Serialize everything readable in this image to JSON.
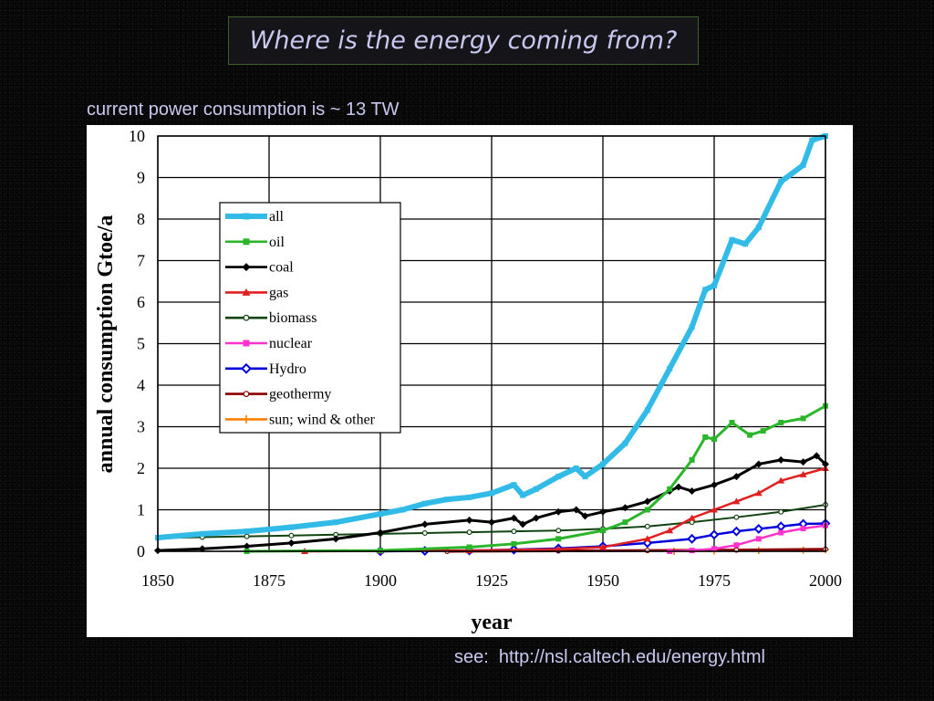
{
  "slide": {
    "title": "Where is the energy coming from?",
    "subtitle": "current power consumption is ~ 13 TW",
    "source": "see:  http://nsl.caltech.edu/energy.html"
  },
  "chart_data": {
    "type": "line",
    "title": "",
    "xlabel": "year",
    "ylabel": "annual consumption Gtoe/a",
    "xlim": [
      1850,
      2000
    ],
    "ylim": [
      0,
      10
    ],
    "xticks": [
      1850,
      1875,
      1900,
      1925,
      1950,
      1975,
      2000
    ],
    "yticks": [
      0,
      1,
      2,
      3,
      4,
      5,
      6,
      7,
      8,
      9,
      10
    ],
    "grid": true,
    "legend_position": "top-left",
    "series": [
      {
        "name": "all",
        "color": "#33bbe8",
        "marker": "square",
        "points": [
          [
            1850,
            0.33
          ],
          [
            1860,
            0.42
          ],
          [
            1870,
            0.48
          ],
          [
            1880,
            0.58
          ],
          [
            1890,
            0.7
          ],
          [
            1900,
            0.9
          ],
          [
            1905,
            1.0
          ],
          [
            1910,
            1.15
          ],
          [
            1915,
            1.25
          ],
          [
            1920,
            1.3
          ],
          [
            1925,
            1.4
          ],
          [
            1930,
            1.6
          ],
          [
            1932,
            1.35
          ],
          [
            1935,
            1.5
          ],
          [
            1940,
            1.8
          ],
          [
            1944,
            2.0
          ],
          [
            1946,
            1.8
          ],
          [
            1950,
            2.1
          ],
          [
            1955,
            2.6
          ],
          [
            1960,
            3.4
          ],
          [
            1965,
            4.4
          ],
          [
            1970,
            5.4
          ],
          [
            1973,
            6.3
          ],
          [
            1975,
            6.4
          ],
          [
            1979,
            7.5
          ],
          [
            1982,
            7.4
          ],
          [
            1985,
            7.8
          ],
          [
            1990,
            8.9
          ],
          [
            1995,
            9.3
          ],
          [
            1997,
            9.9
          ],
          [
            2000,
            10.0
          ]
        ]
      },
      {
        "name": "oil",
        "color": "#2ab52a",
        "marker": "square",
        "points": [
          [
            1870,
            0.0
          ],
          [
            1900,
            0.02
          ],
          [
            1920,
            0.1
          ],
          [
            1930,
            0.18
          ],
          [
            1940,
            0.3
          ],
          [
            1950,
            0.5
          ],
          [
            1955,
            0.7
          ],
          [
            1960,
            1.0
          ],
          [
            1965,
            1.5
          ],
          [
            1970,
            2.2
          ],
          [
            1973,
            2.75
          ],
          [
            1975,
            2.7
          ],
          [
            1979,
            3.1
          ],
          [
            1983,
            2.8
          ],
          [
            1986,
            2.9
          ],
          [
            1990,
            3.1
          ],
          [
            1995,
            3.2
          ],
          [
            2000,
            3.5
          ]
        ]
      },
      {
        "name": "coal",
        "color": "#000000",
        "marker": "diamond",
        "points": [
          [
            1850,
            0.02
          ],
          [
            1860,
            0.06
          ],
          [
            1870,
            0.12
          ],
          [
            1880,
            0.2
          ],
          [
            1890,
            0.3
          ],
          [
            1900,
            0.45
          ],
          [
            1910,
            0.65
          ],
          [
            1920,
            0.75
          ],
          [
            1925,
            0.7
          ],
          [
            1930,
            0.8
          ],
          [
            1932,
            0.65
          ],
          [
            1935,
            0.8
          ],
          [
            1940,
            0.95
          ],
          [
            1944,
            1.0
          ],
          [
            1946,
            0.85
          ],
          [
            1950,
            0.95
          ],
          [
            1955,
            1.05
          ],
          [
            1960,
            1.2
          ],
          [
            1965,
            1.45
          ],
          [
            1967,
            1.55
          ],
          [
            1970,
            1.45
          ],
          [
            1975,
            1.6
          ],
          [
            1980,
            1.8
          ],
          [
            1985,
            2.1
          ],
          [
            1990,
            2.2
          ],
          [
            1995,
            2.15
          ],
          [
            1998,
            2.3
          ],
          [
            2000,
            2.1
          ]
        ]
      },
      {
        "name": "gas",
        "color": "#e02020",
        "marker": "triangle",
        "points": [
          [
            1883,
            0.0
          ],
          [
            1900,
            0.01
          ],
          [
            1920,
            0.02
          ],
          [
            1940,
            0.05
          ],
          [
            1950,
            0.1
          ],
          [
            1960,
            0.3
          ],
          [
            1965,
            0.5
          ],
          [
            1970,
            0.8
          ],
          [
            1975,
            1.0
          ],
          [
            1980,
            1.2
          ],
          [
            1985,
            1.4
          ],
          [
            1990,
            1.7
          ],
          [
            1995,
            1.85
          ],
          [
            2000,
            2.0
          ]
        ]
      },
      {
        "name": "biomass",
        "color": "#114411",
        "marker": "circle",
        "points": [
          [
            1850,
            0.32
          ],
          [
            1860,
            0.34
          ],
          [
            1870,
            0.36
          ],
          [
            1880,
            0.38
          ],
          [
            1890,
            0.4
          ],
          [
            1900,
            0.42
          ],
          [
            1910,
            0.44
          ],
          [
            1920,
            0.46
          ],
          [
            1930,
            0.48
          ],
          [
            1940,
            0.5
          ],
          [
            1950,
            0.54
          ],
          [
            1960,
            0.6
          ],
          [
            1970,
            0.7
          ],
          [
            1980,
            0.82
          ],
          [
            1990,
            0.95
          ],
          [
            2000,
            1.12
          ]
        ]
      },
      {
        "name": "nuclear",
        "color": "#ff33cc",
        "marker": "square",
        "points": [
          [
            1965,
            0.0
          ],
          [
            1970,
            0.02
          ],
          [
            1975,
            0.06
          ],
          [
            1980,
            0.15
          ],
          [
            1985,
            0.3
          ],
          [
            1990,
            0.45
          ],
          [
            1995,
            0.55
          ],
          [
            2000,
            0.62
          ]
        ]
      },
      {
        "name": "Hydro",
        "color": "#0000dd",
        "marker": "diamond-open",
        "points": [
          [
            1900,
            0.0
          ],
          [
            1910,
            0.01
          ],
          [
            1920,
            0.02
          ],
          [
            1930,
            0.04
          ],
          [
            1940,
            0.07
          ],
          [
            1950,
            0.12
          ],
          [
            1960,
            0.2
          ],
          [
            1970,
            0.3
          ],
          [
            1975,
            0.4
          ],
          [
            1980,
            0.48
          ],
          [
            1985,
            0.54
          ],
          [
            1990,
            0.6
          ],
          [
            1995,
            0.66
          ],
          [
            2000,
            0.67
          ]
        ]
      },
      {
        "name": "geothermy",
        "color": "#8b0000",
        "marker": "circle",
        "points": [
          [
            1915,
            0.0
          ],
          [
            1940,
            0.01
          ],
          [
            1960,
            0.02
          ],
          [
            1980,
            0.03
          ],
          [
            2000,
            0.05
          ]
        ]
      },
      {
        "name": "sun; wind & other",
        "color": "#ff8000",
        "marker": "plus",
        "points": [
          [
            1966,
            0.0
          ],
          [
            1975,
            0.01
          ],
          [
            1985,
            0.02
          ],
          [
            1995,
            0.03
          ],
          [
            2000,
            0.04
          ]
        ]
      }
    ]
  }
}
